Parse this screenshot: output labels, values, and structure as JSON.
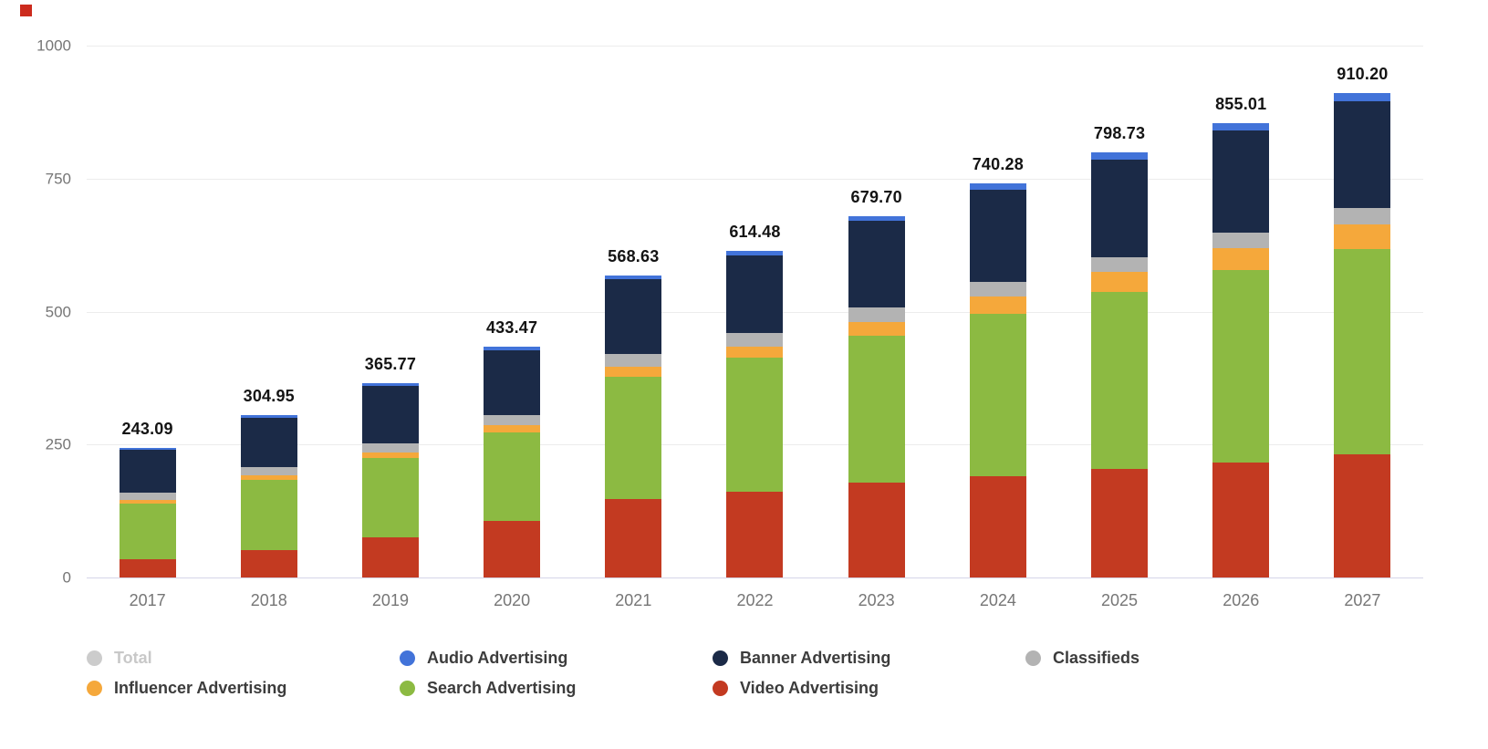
{
  "page": {
    "background": "#ffffff",
    "marker_color": "#cc2b1d"
  },
  "chart_data": {
    "type": "bar",
    "stacked": true,
    "title": "",
    "xlabel": "",
    "ylabel": "",
    "categories": [
      "2017",
      "2018",
      "2019",
      "2020",
      "2021",
      "2022",
      "2023",
      "2024",
      "2025",
      "2026",
      "2027"
    ],
    "series": [
      {
        "name": "Video Advertising",
        "color": "#c33a21",
        "values": [
          35,
          51,
          75,
          107,
          148,
          162,
          178,
          191,
          205,
          217,
          231
        ]
      },
      {
        "name": "Search Advertising",
        "color": "#8cba42",
        "values": [
          104,
          133,
          150,
          166,
          230,
          251,
          276,
          305,
          332,
          361,
          386
        ]
      },
      {
        "name": "Influencer Advertising",
        "color": "#f5a83b",
        "values": [
          6,
          8,
          10,
          13,
          18,
          21,
          27,
          32,
          37,
          42,
          47
        ]
      },
      {
        "name": "Classifieds",
        "color": "#b3b3b3",
        "values": [
          15,
          16,
          18,
          20,
          24,
          25,
          26,
          27,
          28,
          29,
          30
        ]
      },
      {
        "name": "Banner Advertising",
        "color": "#1b2a47",
        "values": [
          80,
          93,
          108,
          121,
          141,
          147,
          163,
          174,
          184,
          192,
          201
        ]
      },
      {
        "name": "Audio Advertising",
        "color": "#4273d9",
        "values": [
          3.09,
          3.95,
          4.77,
          6.47,
          7.63,
          8.48,
          9.7,
          11.28,
          12.73,
          14.01,
          15.2
        ]
      }
    ],
    "totals": [
      "243.09",
      "304.95",
      "365.77",
      "433.47",
      "568.63",
      "614.48",
      "679.70",
      "740.28",
      "798.73",
      "855.01",
      "910.20"
    ],
    "ylim": [
      0,
      1000
    ],
    "yticks": [
      "0",
      "250",
      "500",
      "750",
      "1000"
    ],
    "grid": true,
    "legend_position": "bottom",
    "legend": [
      {
        "label": "Total",
        "color": "#cccccc",
        "disabled": true
      },
      {
        "label": "Audio Advertising",
        "color": "#4273d9",
        "disabled": false
      },
      {
        "label": "Banner Advertising",
        "color": "#1b2a47",
        "disabled": false
      },
      {
        "label": "Classifieds",
        "color": "#b3b3b3",
        "disabled": false
      },
      {
        "label": "Influencer Advertising",
        "color": "#f5a83b",
        "disabled": false
      },
      {
        "label": "Search Advertising",
        "color": "#8cba42",
        "disabled": false
      },
      {
        "label": "Video Advertising",
        "color": "#c33a21",
        "disabled": false
      }
    ]
  }
}
